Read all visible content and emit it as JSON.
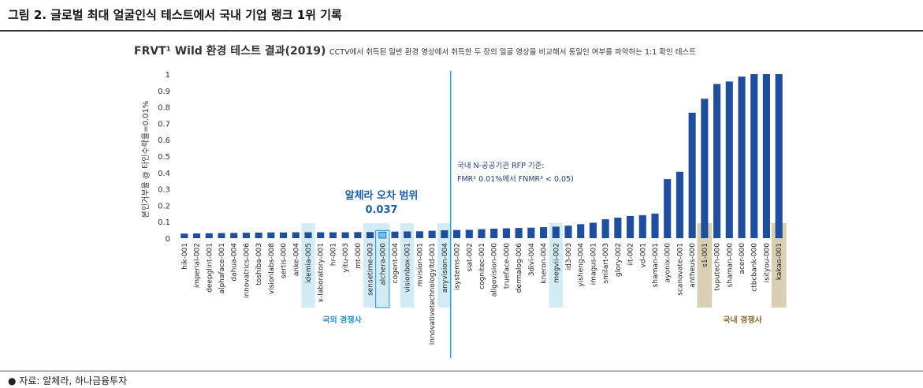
{
  "figure": {
    "title": "그림 2. 글로벌 최대 얼굴인식 테스트에서 국내 기업 랭크 1위 기록",
    "source": "자료: 알체라, 하나금융투자"
  },
  "chart_data": {
    "type": "bar",
    "title": "FRVT¹ Wild 환경 테스트 결과(2019)",
    "subtitle": "CCTV에서 취득된 일반 환경 영상에서 취득한 두 장의 얼굴 영상을 비교해서 동일인 여부를 파악하는 1:1 확인 테스트",
    "ylabel": "본인거부율 @ 타인수락율=0.01%",
    "xlabel": "",
    "ylim": [
      0,
      1
    ],
    "yticks": [
      "0",
      "0.1",
      "0.2",
      "0.3",
      "0.4",
      "0.5",
      "0.6",
      "0.7",
      "0.8",
      "0.9",
      "1"
    ],
    "categories": [
      "hik-001",
      "imperial-002",
      "deepglint-001",
      "alphaface-001",
      "dahua-004",
      "innovatrics-006",
      "toshiba-003",
      "visionlabs-008",
      "sertis-000",
      "anke-004",
      "idemia-005",
      "x-laboratory-001",
      "hr-001",
      "yitu-003",
      "mt-000",
      "sensetime-003",
      "alchera-000",
      "cogent-004",
      "visionbox-001",
      "mvision-001",
      "innovativetechnologyltd-001",
      "anyvision-004",
      "isystems-002",
      "siat-002",
      "cognitec-001",
      "allgovision-000",
      "trueface-000",
      "dermalog-006",
      "3divi-004",
      "kneron-004",
      "megvii-002",
      "id3-003",
      "yisheng-004",
      "imagus-001",
      "smilart-003",
      "glory-002",
      "iit-002",
      "vd-001",
      "shaman-001",
      "ayonix-000",
      "scanovate-001",
      "antheus-000",
      "s1-001",
      "tuputech-000",
      "shaman-000",
      "acer-000",
      "ctbcbank-000",
      "isityou-000",
      "kakao-001"
    ],
    "values": [
      0.028,
      0.029,
      0.03,
      0.031,
      0.032,
      0.033,
      0.034,
      0.035,
      0.035,
      0.036,
      0.036,
      0.036,
      0.036,
      0.036,
      0.037,
      0.037,
      0.037,
      0.04,
      0.041,
      0.042,
      0.045,
      0.048,
      0.05,
      0.051,
      0.055,
      0.058,
      0.06,
      0.062,
      0.064,
      0.067,
      0.07,
      0.076,
      0.085,
      0.094,
      0.115,
      0.125,
      0.135,
      0.14,
      0.15,
      0.36,
      0.405,
      0.765,
      0.85,
      0.94,
      0.955,
      0.985,
      1.0,
      1.0,
      1.0
    ],
    "bar_color": "#1f4e9c",
    "highlighted_bar": "alchera-000",
    "highlighted_bar_color": "#6ac6ec",
    "band_blue_color": "#d3ebf4",
    "band_gold_color": "#d8cfb4",
    "domestic_competitors": [
      "s1-001",
      "kakao-001"
    ],
    "overseas_competitors": [
      "idemia-005",
      "sensetime-003",
      "alchera-000",
      "visionbox-001",
      "anyvision-004",
      "megvii-002"
    ],
    "group_labels": {
      "overseas": "국외 경쟁사",
      "domestic": "국내 경쟁사"
    },
    "annotations": {
      "alchera_range_title": "알체라 오차 범위",
      "alchera_range_value": "0.037",
      "rfp_line1": "국내 N-공공기관 RFP 기준:",
      "rfp_line2": "FMR² 0.01%에서 FNMR³ < 0.05)",
      "reference_line_color": "#29a3d6"
    }
  }
}
